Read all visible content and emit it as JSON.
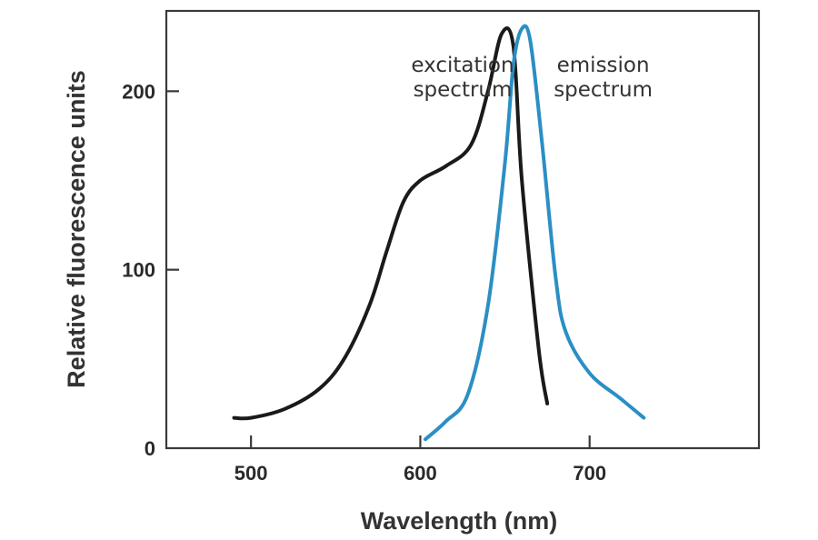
{
  "chart_data": {
    "type": "line",
    "title": "",
    "xlabel": "Wavelength (nm)",
    "ylabel": "Relative fluorescence units",
    "xlim": [
      450,
      800
    ],
    "ylim": [
      0,
      245
    ],
    "xticks": [
      500,
      600,
      700
    ],
    "yticks": [
      0,
      100,
      200
    ],
    "xtick_labels": [
      "500",
      "600",
      "700"
    ],
    "ytick_labels": [
      "0",
      "100",
      "200"
    ],
    "grid": false,
    "series": [
      {
        "name": "excitation spectrum",
        "color": "#1a1a1a",
        "x": [
          490,
          500,
          520,
          540,
          555,
          570,
          580,
          590,
          600,
          615,
          630,
          640,
          648,
          655,
          660,
          670,
          675
        ],
        "y": [
          17,
          17,
          22,
          33,
          50,
          80,
          110,
          138,
          150,
          158,
          170,
          200,
          232,
          225,
          150,
          55,
          25
        ]
      },
      {
        "name": "emission spectrum",
        "color": "#2b8fc4",
        "x": [
          603,
          615,
          628,
          640,
          650,
          655,
          660,
          665,
          672,
          680,
          686,
          700,
          718,
          732
        ],
        "y": [
          5,
          15,
          30,
          80,
          160,
          215,
          235,
          228,
          170,
          95,
          65,
          42,
          28,
          17
        ]
      }
    ],
    "annotations": [
      {
        "lines": [
          "excitation",
          "spectrum"
        ],
        "x": 625,
        "y": 211
      },
      {
        "lines": [
          "emission",
          "spectrum"
        ],
        "x": 708,
        "y": 211
      }
    ]
  }
}
